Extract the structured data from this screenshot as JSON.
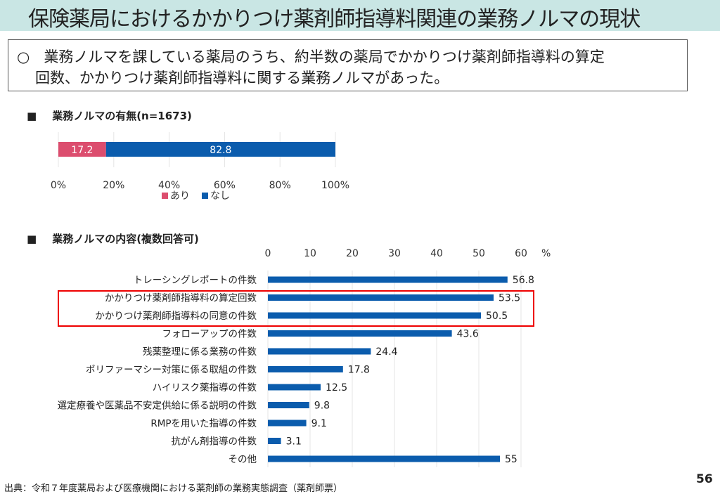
{
  "title": "保険薬局におけるかかりつけ薬剤師指導料関連の業務ノルマの現状",
  "summary": {
    "bullet": "○",
    "line1": "業務ノルマを課している薬局のうち、約半数の薬局でかかりつけ薬剤師指導料の算定",
    "line2": "回数、かかりつけ薬剤師指導料に関する業務ノルマがあった。"
  },
  "section_marker": "■",
  "source": "出典：令和７年度薬局および医療機関における薬剤師の業務実態調査（薬剤師票）",
  "page_number": "56",
  "chart_data": [
    {
      "type": "bar",
      "stacked": true,
      "orientation": "horizontal",
      "title": "業務ノルマの有無(n=1673)",
      "series": [
        {
          "name": "あり",
          "values": [
            17.2
          ],
          "color": "#dc4d6e"
        },
        {
          "name": "なし",
          "values": [
            82.8
          ],
          "color": "#0b5cad"
        }
      ],
      "xlim": [
        0,
        100
      ],
      "xticks": [
        "0%",
        "20%",
        "40%",
        "60%",
        "80%",
        "100%"
      ],
      "grid": true,
      "legend": "bottom"
    },
    {
      "type": "bar",
      "orientation": "horizontal",
      "title": "業務ノルマの内容(複数回答可)",
      "unit": "%",
      "categories": [
        "トレーシングレポートの件数",
        "かかりつけ薬剤師指導料の算定回数",
        "かかりつけ薬剤師指導料の同意の件数",
        "フォローアップの件数",
        "残薬整理に係る業務の件数",
        "ポリファーマシー対策に係る取組の件数",
        "ハイリスク薬指導の件数",
        "選定療養や医薬品不安定供給に係る説明の件数",
        "RMPを用いた指導の件数",
        "抗がん剤指導の件数",
        "その他"
      ],
      "values": [
        56.8,
        53.5,
        50.5,
        43.6,
        24.4,
        17.8,
        12.5,
        9.8,
        9.1,
        3.1,
        55
      ],
      "value_labels": [
        "56.8",
        "53.5",
        "50.5",
        "43.6",
        "24.4",
        "17.8",
        "12.5",
        "9.8",
        "9.1",
        "3.1",
        "55"
      ],
      "xlim": [
        0,
        60
      ],
      "xticks": [
        "0",
        "10",
        "20",
        "30",
        "40",
        "50",
        "60"
      ],
      "bar_color": "#0b5cad",
      "highlighted": [
        1,
        2
      ],
      "highlight_color": "#e00000",
      "grid": true
    }
  ]
}
